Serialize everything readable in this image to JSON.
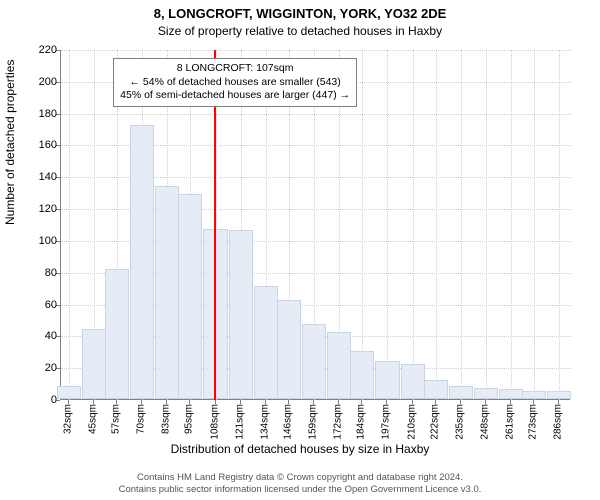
{
  "chart": {
    "type": "histogram",
    "title_line1": "8, LONGCROFT, WIGGINTON, YORK, YO32 2DE",
    "title_line2": "Size of property relative to detached houses in Haxby",
    "ylabel": "Number of detached properties",
    "xlabel": "Distribution of detached houses by size in Haxby",
    "title_fontsize": 13,
    "subtitle_fontsize": 12,
    "label_fontsize": 12,
    "tick_fontsize": 11,
    "background_color": "#ffffff",
    "grid_color": "#d0d0d0",
    "axis_color": "#808080",
    "bar_fill_color": "#e5ecf6",
    "bar_border_color": "#c8d4e8",
    "reference_line_color": "#ff0000",
    "annotation_border_color": "#808080",
    "ylim": [
      0,
      220
    ],
    "ytick_step": 20,
    "yticks": [
      0,
      20,
      40,
      60,
      80,
      100,
      120,
      140,
      160,
      180,
      200,
      220
    ],
    "xticks": [
      "32sqm",
      "45sqm",
      "57sqm",
      "70sqm",
      "83sqm",
      "95sqm",
      "108sqm",
      "121sqm",
      "134sqm",
      "146sqm",
      "159sqm",
      "172sqm",
      "184sqm",
      "197sqm",
      "210sqm",
      "222sqm",
      "235sqm",
      "248sqm",
      "261sqm",
      "273sqm",
      "286sqm"
    ],
    "xtick_values": [
      32,
      45,
      57,
      70,
      83,
      95,
      108,
      121,
      134,
      146,
      159,
      172,
      184,
      197,
      210,
      222,
      235,
      248,
      261,
      273,
      286
    ],
    "x_range": [
      28,
      292
    ],
    "bars": [
      {
        "x": 32,
        "h": 8
      },
      {
        "x": 45,
        "h": 44
      },
      {
        "x": 57,
        "h": 82
      },
      {
        "x": 70,
        "h": 172
      },
      {
        "x": 83,
        "h": 134
      },
      {
        "x": 95,
        "h": 129
      },
      {
        "x": 108,
        "h": 107
      },
      {
        "x": 121,
        "h": 106
      },
      {
        "x": 134,
        "h": 71
      },
      {
        "x": 146,
        "h": 62
      },
      {
        "x": 159,
        "h": 47
      },
      {
        "x": 172,
        "h": 42
      },
      {
        "x": 184,
        "h": 30
      },
      {
        "x": 197,
        "h": 24
      },
      {
        "x": 210,
        "h": 22
      },
      {
        "x": 222,
        "h": 12
      },
      {
        "x": 235,
        "h": 8
      },
      {
        "x": 248,
        "h": 7
      },
      {
        "x": 261,
        "h": 6
      },
      {
        "x": 273,
        "h": 5
      },
      {
        "x": 286,
        "h": 5
      }
    ],
    "bar_width_sqm": 12.5,
    "reference_value": 107,
    "annotation": {
      "line1": "8 LONGCROFT: 107sqm",
      "line2": "← 54% of detached houses are smaller (543)",
      "line3": "45% of semi-detached houses are larger (447) →",
      "left_sqm": 55,
      "top_y": 215
    }
  },
  "footer": {
    "line1": "Contains HM Land Registry data © Crown copyright and database right 2024.",
    "line2": "Contains public sector information licensed under the Open Government Licence v3.0."
  }
}
